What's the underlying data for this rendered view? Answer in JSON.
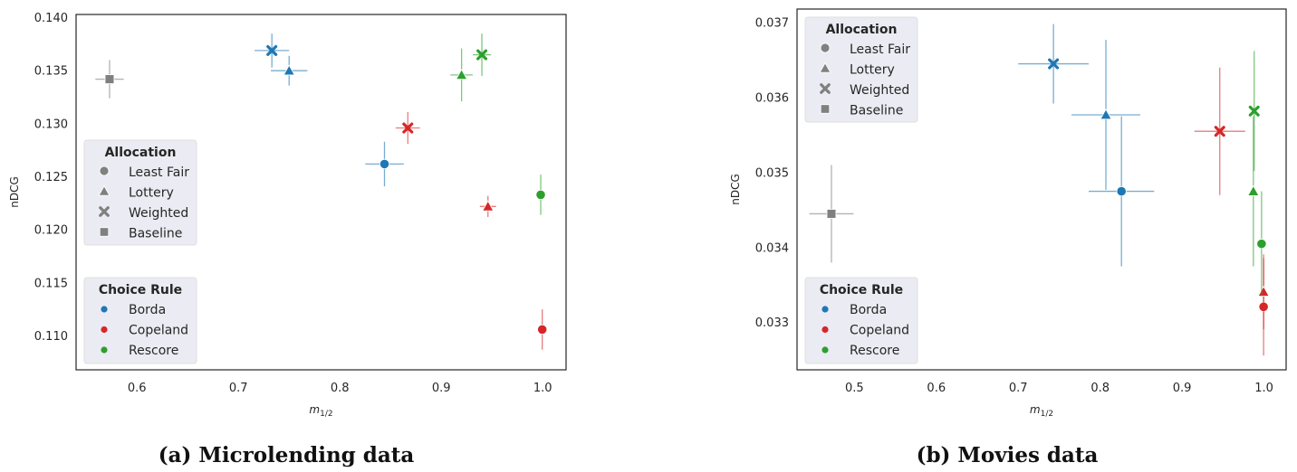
{
  "chart_data": [
    {
      "type": "scatter",
      "panel": "a",
      "caption": "(a) Microlending data",
      "xlabel": "m",
      "xlabel_sub": "1/2",
      "ylabel": "nDCG",
      "xlim": [
        0.54,
        1.023
      ],
      "ylim": [
        0.1068,
        0.1403
      ],
      "xticks": [
        0.6,
        0.7,
        0.8,
        0.9,
        1.0
      ],
      "xtick_labels": [
        "0.6",
        "0.7",
        "0.8",
        "0.9",
        "1.0"
      ],
      "yticks": [
        0.11,
        0.115,
        0.12,
        0.125,
        0.13,
        0.135,
        0.14
      ],
      "ytick_labels": [
        "0.110",
        "0.115",
        "0.120",
        "0.125",
        "0.130",
        "0.135",
        "0.140"
      ],
      "grid": false,
      "legend_position": "left",
      "points": [
        {
          "rule": "Borda",
          "allocation": "Least Fair",
          "x": 0.844,
          "y": 0.1262,
          "xerr": 0.019,
          "yerr": 0.0021
        },
        {
          "rule": "Borda",
          "allocation": "Lottery",
          "x": 0.75,
          "y": 0.135,
          "xerr": 0.018,
          "yerr": 0.0014
        },
        {
          "rule": "Borda",
          "allocation": "Weighted",
          "x": 0.733,
          "y": 0.1369,
          "xerr": 0.017,
          "yerr": 0.0016
        },
        {
          "rule": "Copeland",
          "allocation": "Least Fair",
          "x": 0.9995,
          "y": 0.1106,
          "xerr": 0,
          "yerr": 0.0019
        },
        {
          "rule": "Copeland",
          "allocation": "Lottery",
          "x": 0.946,
          "y": 0.1222,
          "xerr": 0.008,
          "yerr": 0.001
        },
        {
          "rule": "Copeland",
          "allocation": "Weighted",
          "x": 0.867,
          "y": 0.1296,
          "xerr": 0.012,
          "yerr": 0.0015
        },
        {
          "rule": "Rescore",
          "allocation": "Least Fair",
          "x": 0.998,
          "y": 0.1233,
          "xerr": 0,
          "yerr": 0.0019
        },
        {
          "rule": "Rescore",
          "allocation": "Lottery",
          "x": 0.92,
          "y": 0.1346,
          "xerr": 0.011,
          "yerr": 0.0025
        },
        {
          "rule": "Rescore",
          "allocation": "Weighted",
          "x": 0.94,
          "y": 0.1365,
          "xerr": 0.009,
          "yerr": 0.002
        },
        {
          "rule": "Baseline",
          "allocation": "Baseline",
          "x": 0.573,
          "y": 0.1342,
          "xerr": 0.014,
          "yerr": 0.0018
        }
      ]
    },
    {
      "type": "scatter",
      "panel": "b",
      "caption": "(b) Movies data",
      "xlabel": "m",
      "xlabel_sub": "1/2",
      "ylabel": "nDCG",
      "xlim": [
        0.43,
        1.027
      ],
      "ylim": [
        0.03237,
        0.03718
      ],
      "xticks": [
        0.5,
        0.6,
        0.7,
        0.8,
        0.9,
        1.0
      ],
      "xtick_labels": [
        "0.5",
        "0.6",
        "0.7",
        "0.8",
        "0.9",
        "1.0"
      ],
      "yticks": [
        0.033,
        0.034,
        0.035,
        0.036,
        0.037
      ],
      "ytick_labels": [
        "0.033",
        "0.034",
        "0.035",
        "0.036",
        "0.037"
      ],
      "grid": false,
      "legend_position": "left",
      "points": [
        {
          "rule": "Borda",
          "allocation": "Least Fair",
          "x": 0.826,
          "y": 0.03475,
          "xerr": 0.04,
          "yerr": 0.001
        },
        {
          "rule": "Borda",
          "allocation": "Lottery",
          "x": 0.807,
          "y": 0.03577,
          "xerr": 0.042,
          "yerr": 0.001
        },
        {
          "rule": "Borda",
          "allocation": "Weighted",
          "x": 0.743,
          "y": 0.03645,
          "xerr": 0.043,
          "yerr": 0.00053
        },
        {
          "rule": "Copeland",
          "allocation": "Least Fair",
          "x": 0.9995,
          "y": 0.03321,
          "xerr": 0,
          "yerr": 0.00065
        },
        {
          "rule": "Copeland",
          "allocation": "Lottery",
          "x": 0.9995,
          "y": 0.03341,
          "xerr": 0,
          "yerr": 0.0005
        },
        {
          "rule": "Copeland",
          "allocation": "Weighted",
          "x": 0.946,
          "y": 0.03555,
          "xerr": 0.031,
          "yerr": 0.00085
        },
        {
          "rule": "Rescore",
          "allocation": "Least Fair",
          "x": 0.997,
          "y": 0.03405,
          "xerr": 0,
          "yerr": 0.0007
        },
        {
          "rule": "Rescore",
          "allocation": "Lottery",
          "x": 0.987,
          "y": 0.03475,
          "xerr": 0,
          "yerr": 0.001
        },
        {
          "rule": "Rescore",
          "allocation": "Weighted",
          "x": 0.988,
          "y": 0.03582,
          "xerr": 0,
          "yerr": 0.0008
        },
        {
          "rule": "Baseline",
          "allocation": "Baseline",
          "x": 0.472,
          "y": 0.03445,
          "xerr": 0.027,
          "yerr": 0.00065
        }
      ]
    }
  ],
  "legend": {
    "allocation_title": "Allocation",
    "allocation_items": [
      {
        "label": "Least Fair",
        "marker": "circle"
      },
      {
        "label": "Lottery",
        "marker": "triangle"
      },
      {
        "label": "Weighted",
        "marker": "x"
      },
      {
        "label": "Baseline",
        "marker": "square"
      }
    ],
    "rule_title": "Choice Rule",
    "rule_items": [
      {
        "label": "Borda",
        "color": "#1f77b4"
      },
      {
        "label": "Copeland",
        "color": "#d62728"
      },
      {
        "label": "Rescore",
        "color": "#2ca02c"
      }
    ]
  },
  "colors": {
    "Borda": "#1f77b4",
    "Copeland": "#d62728",
    "Rescore": "#2ca02c",
    "Baseline": "#7f7f7f",
    "legend_marker": "#808080",
    "legend_bg": "#eaeaf2"
  }
}
